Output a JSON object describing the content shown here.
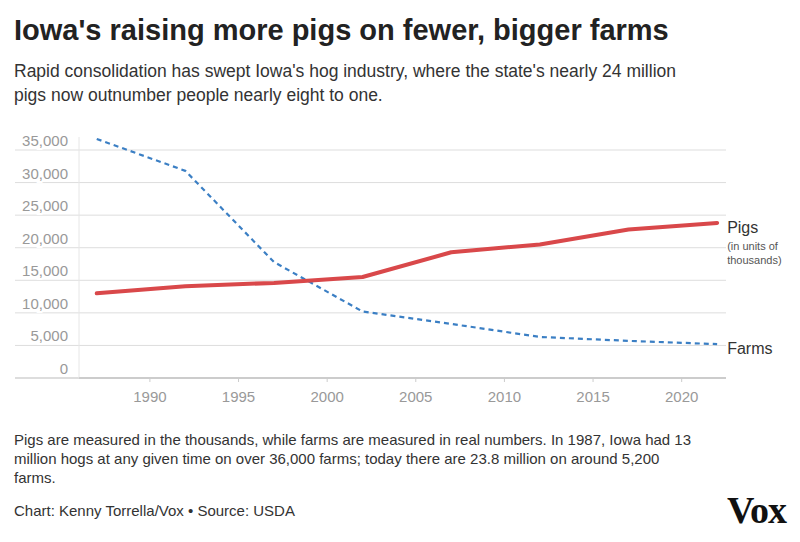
{
  "chart_data": {
    "type": "line",
    "title": "Iowa's raising more pigs on fewer, bigger farms",
    "subtitle": [
      "Rapid consolidation has swept Iowa's hog industry, where the state's nearly 24 million",
      "pigs now outnumber people nearly eight to one."
    ],
    "note": [
      "Pigs are measured in the thousands, while farms are measured in real numbers. In 1987, Iowa had 13",
      "million hogs at any given time on over 36,000 farms; today there are 23.8 million on around 5,200",
      "farms."
    ],
    "source": "Chart: Kenny Torrella/Vox • Source: USDA",
    "logo": "Vox",
    "x": [
      1987,
      1992,
      1997,
      2002,
      2007,
      2012,
      2017,
      2022
    ],
    "xlim": [
      1986,
      2022.5
    ],
    "xticks": [
      1990,
      1995,
      2000,
      2005,
      2010,
      2015,
      2020
    ],
    "ylim": [
      0,
      37000
    ],
    "yticks": [
      0,
      {
        "value": 5000,
        "label": "5,000"
      },
      {
        "value": 10000,
        "label": "10,000"
      },
      {
        "value": 15000,
        "label": "15,000"
      },
      {
        "value": 20000,
        "label": "20,000"
      },
      {
        "value": 25000,
        "label": "25,000"
      },
      {
        "value": 30000,
        "label": "30,000"
      },
      {
        "value": 35000,
        "label": "35,000"
      }
    ],
    "grid": true,
    "series": [
      {
        "name": "Pigs",
        "annotation": [
          "(in units of",
          "thousands)"
        ],
        "color": "#d9484a",
        "line_style": "solid",
        "values": [
          13000,
          14100,
          14600,
          15500,
          19300,
          20500,
          22800,
          23800
        ]
      },
      {
        "name": "Farms",
        "color": "#3b7fc4",
        "line_style": "dashed",
        "values": [
          36700,
          31800,
          17800,
          10200,
          8300,
          6300,
          5700,
          5200
        ]
      }
    ]
  }
}
